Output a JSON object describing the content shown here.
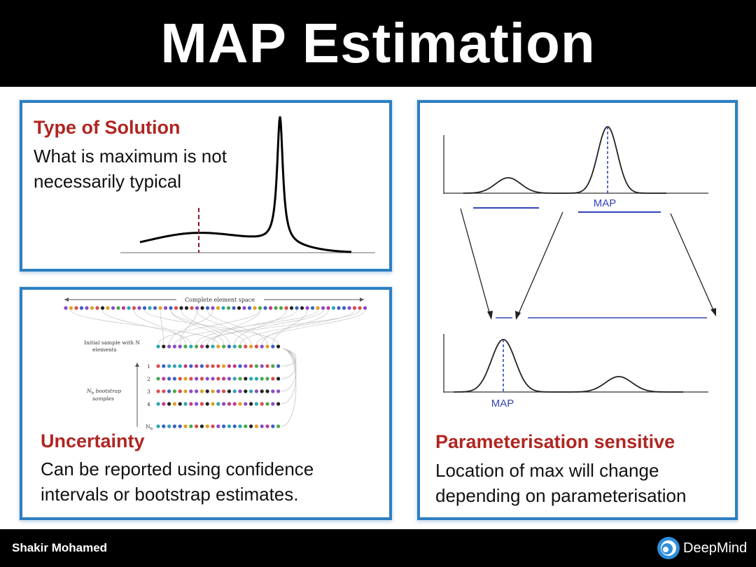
{
  "header": {
    "title": "MAP Estimation"
  },
  "panels": {
    "type_of_solution": {
      "heading": "Type of Solution",
      "lines": [
        "What is maximum is not",
        "necessarily typical"
      ]
    },
    "uncertainty": {
      "heading": "Uncertainty",
      "lines": [
        "Can be reported  using confidence",
        "intervals or bootstrap estimates."
      ],
      "figure": {
        "space_label": "Complete element space",
        "initial_sample_label": [
          "Initial sample with N",
          "elements"
        ],
        "bootstrap_label": [
          "N",
          "b",
          " bootstrap",
          "samples"
        ],
        "row_labels": [
          "1",
          "2",
          "3",
          "4"
        ],
        "last_row_label": [
          "N",
          "b"
        ]
      }
    },
    "parameterisation": {
      "heading": "Parameterisation sensitive",
      "lines": [
        "Location of max will change",
        "depending on parameterisation"
      ],
      "figure": {
        "top_map_label": "MAP",
        "bottom_map_label": "MAP"
      }
    }
  },
  "footer": {
    "author": "Shakir Mohamed",
    "logo_text": "DeepMind"
  },
  "colors": {
    "title_bar": "#000000",
    "panel_border": "#2d7fc1",
    "heading": "#b02622",
    "map_line": "#3344bb",
    "dashed_marker": "#8b1a2a"
  }
}
